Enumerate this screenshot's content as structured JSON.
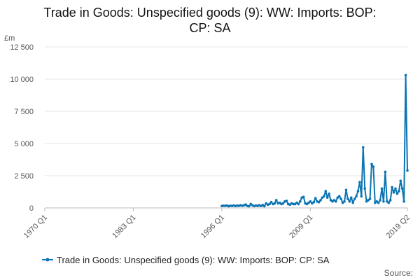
{
  "chart_data": {
    "type": "line",
    "title": "Trade in Goods: Unspecified goods (9): WW: Imports: BOP: CP: SA",
    "title_lines": [
      "Trade in Goods: Unspecified goods (9): WW: Imports: BOP:",
      "CP: SA"
    ],
    "ylabel": "£m",
    "xlabel": "",
    "ylim": [
      0,
      12500
    ],
    "yticks": [
      0,
      2500,
      5000,
      7500,
      10000,
      12500
    ],
    "ytick_labels": [
      "0",
      "2 500",
      "5 000",
      "7 500",
      "10 000",
      "12 500"
    ],
    "xticks": [
      "1970 Q1",
      "1983 Q1",
      "1996 Q1",
      "2009 Q1",
      "2019 Q2"
    ],
    "grid": true,
    "legend_position": "bottom",
    "series": [
      {
        "name": "Trade in Goods: Unspecified goods (9): WW: Imports: BOP: CP: SA",
        "color": "#0b74b3",
        "points": [
          [
            "1996 Q1",
            150
          ],
          [
            "1996 Q2",
            170
          ],
          [
            "1996 Q3",
            160
          ],
          [
            "1996 Q4",
            180
          ],
          [
            "1997 Q1",
            130
          ],
          [
            "1997 Q2",
            170
          ],
          [
            "1997 Q3",
            150
          ],
          [
            "1997 Q4",
            190
          ],
          [
            "1998 Q1",
            140
          ],
          [
            "1998 Q2",
            180
          ],
          [
            "1998 Q3",
            160
          ],
          [
            "1998 Q4",
            200
          ],
          [
            "1999 Q1",
            170
          ],
          [
            "1999 Q2",
            200
          ],
          [
            "1999 Q3",
            260
          ],
          [
            "1999 Q4",
            150
          ],
          [
            "2000 Q1",
            130
          ],
          [
            "2000 Q2",
            300
          ],
          [
            "2000 Q3",
            200
          ],
          [
            "2000 Q4",
            140
          ],
          [
            "2001 Q1",
            180
          ],
          [
            "2001 Q2",
            160
          ],
          [
            "2001 Q3",
            200
          ],
          [
            "2001 Q4",
            150
          ],
          [
            "2002 Q1",
            220
          ],
          [
            "2002 Q2",
            130
          ],
          [
            "2002 Q3",
            350
          ],
          [
            "2002 Q4",
            250
          ],
          [
            "2003 Q1",
            300
          ],
          [
            "2003 Q2",
            450
          ],
          [
            "2003 Q3",
            300
          ],
          [
            "2003 Q4",
            350
          ],
          [
            "2004 Q1",
            600
          ],
          [
            "2004 Q2",
            350
          ],
          [
            "2004 Q3",
            400
          ],
          [
            "2004 Q4",
            300
          ],
          [
            "2005 Q1",
            350
          ],
          [
            "2005 Q2",
            500
          ],
          [
            "2005 Q3",
            550
          ],
          [
            "2005 Q4",
            300
          ],
          [
            "2006 Q1",
            250
          ],
          [
            "2006 Q2",
            350
          ],
          [
            "2006 Q3",
            300
          ],
          [
            "2006 Q4",
            300
          ],
          [
            "2007 Q1",
            400
          ],
          [
            "2007 Q2",
            300
          ],
          [
            "2007 Q3",
            500
          ],
          [
            "2007 Q4",
            800
          ],
          [
            "2008 Q1",
            850
          ],
          [
            "2008 Q2",
            350
          ],
          [
            "2008 Q3",
            300
          ],
          [
            "2008 Q4",
            400
          ],
          [
            "2009 Q1",
            500
          ],
          [
            "2009 Q2",
            350
          ],
          [
            "2009 Q3",
            450
          ],
          [
            "2009 Q4",
            750
          ],
          [
            "2010 Q1",
            500
          ],
          [
            "2010 Q2",
            450
          ],
          [
            "2010 Q3",
            600
          ],
          [
            "2010 Q4",
            800
          ],
          [
            "2011 Q1",
            900
          ],
          [
            "2011 Q2",
            1300
          ],
          [
            "2011 Q3",
            800
          ],
          [
            "2011 Q4",
            1100
          ],
          [
            "2012 Q1",
            600
          ],
          [
            "2012 Q2",
            500
          ],
          [
            "2012 Q3",
            600
          ],
          [
            "2012 Q4",
            500
          ],
          [
            "2013 Q1",
            800
          ],
          [
            "2013 Q2",
            900
          ],
          [
            "2013 Q3",
            700
          ],
          [
            "2013 Q4",
            400
          ],
          [
            "2014 Q1",
            500
          ],
          [
            "2014 Q2",
            1400
          ],
          [
            "2014 Q3",
            700
          ],
          [
            "2014 Q4",
            500
          ],
          [
            "2015 Q1",
            800
          ],
          [
            "2015 Q2",
            400
          ],
          [
            "2015 Q3",
            700
          ],
          [
            "2015 Q4",
            900
          ],
          [
            "2016 Q1",
            1300
          ],
          [
            "2016 Q2",
            2000
          ],
          [
            "2016 Q3",
            900
          ],
          [
            "2016 Q4",
            4700
          ],
          [
            "2017 Q1",
            1500
          ],
          [
            "2017 Q2",
            500
          ],
          [
            "2017 Q3",
            600
          ],
          [
            "2017 Q4",
            700
          ],
          [
            "2018 Q1",
            3400
          ],
          [
            "2018 Q2",
            3200
          ],
          [
            "2018 Q3",
            400
          ],
          [
            "2018 Q4",
            500
          ],
          [
            "2019 Q1",
            400
          ],
          [
            "2019 Q2",
            600
          ],
          [
            "2019 Q3",
            1500
          ],
          [
            "2019 Q4",
            500
          ],
          [
            "2020 Q1",
            2800
          ],
          [
            "2020 Q2",
            500
          ],
          [
            "2020 Q3",
            400
          ],
          [
            "2020 Q4",
            600
          ],
          [
            "2021 Q1",
            1600
          ],
          [
            "2021 Q2",
            1200
          ],
          [
            "2021 Q3",
            1500
          ],
          [
            "2021 Q4",
            1100
          ],
          [
            "2022 Q1",
            1300
          ],
          [
            "2022 Q2",
            2100
          ],
          [
            "2022 Q3",
            1500
          ],
          [
            "2022 Q4",
            500
          ],
          [
            "2023 Q1",
            10300
          ],
          [
            "2023 Q2",
            2900
          ]
        ]
      }
    ],
    "source": "Source:"
  }
}
